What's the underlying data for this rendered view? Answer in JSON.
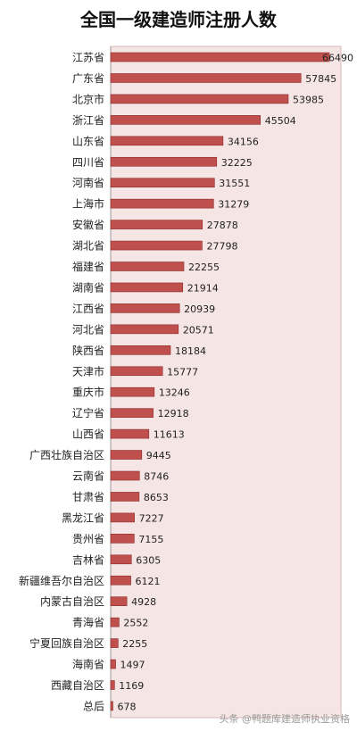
{
  "chart_data": {
    "type": "bar",
    "orientation": "horizontal",
    "title": "全国一级建造师注册人数",
    "categories": [
      "江苏省",
      "广东省",
      "北京市",
      "浙江省",
      "山东省",
      "四川省",
      "河南省",
      "上海市",
      "安徽省",
      "湖北省",
      "福建省",
      "湖南省",
      "江西省",
      "河北省",
      "陕西省",
      "天津市",
      "重庆市",
      "辽宁省",
      "山西省",
      "广西壮族自治区",
      "云南省",
      "甘肃省",
      "黑龙江省",
      "贵州省",
      "吉林省",
      "新疆维吾尔自治区",
      "内蒙古自治区",
      "青海省",
      "宁夏回族自治区",
      "海南省",
      "西藏自治区",
      "总后"
    ],
    "values": [
      66490,
      57845,
      53985,
      45504,
      34156,
      32225,
      31551,
      31279,
      27878,
      27798,
      22255,
      21914,
      20939,
      20571,
      18184,
      15777,
      13246,
      12918,
      11613,
      9445,
      8746,
      8653,
      7227,
      7155,
      6305,
      6121,
      4928,
      2552,
      2255,
      1497,
      1169,
      678
    ],
    "xlim": [
      0,
      70000
    ],
    "grid": false,
    "legend": "none",
    "colors": {
      "bar": "#c0504d",
      "bar_stroke": "#8b2c2a",
      "plot_bg": "#f5e5e5",
      "plot_border": "#d8b8b8"
    }
  },
  "watermark": "头条 @鸭题库建造师执业资格"
}
